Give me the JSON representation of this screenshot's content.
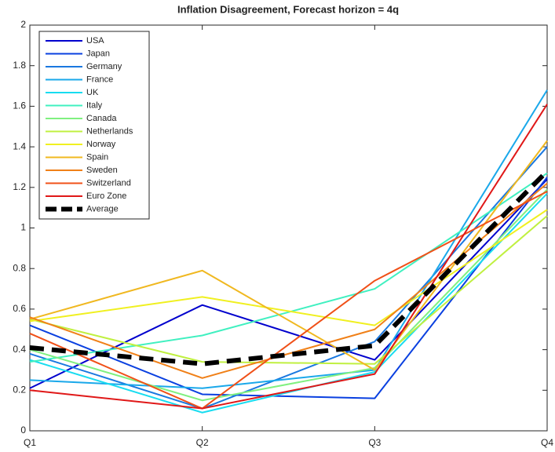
{
  "chart_data": {
    "type": "line",
    "title": "Inflation Disagreement, Forecast horizon = 4q",
    "categories": [
      "Q1",
      "Q2",
      "Q3",
      "Q4"
    ],
    "ylim": [
      0,
      2
    ],
    "yticks": [
      0,
      0.2,
      0.4,
      0.6,
      0.8,
      1,
      1.2,
      1.4,
      1.6,
      1.8,
      2
    ],
    "legend": "upper-left",
    "series": [
      {
        "name": "USA",
        "color": "#0000cd",
        "values": [
          0.21,
          0.62,
          0.35,
          1.24
        ]
      },
      {
        "name": "Japan",
        "color": "#0a40e0",
        "values": [
          0.52,
          0.18,
          0.16,
          1.25
        ]
      },
      {
        "name": "Germany",
        "color": "#1a78e0",
        "values": [
          0.38,
          0.11,
          0.44,
          1.4
        ]
      },
      {
        "name": "France",
        "color": "#1aa8ea",
        "values": [
          0.25,
          0.21,
          0.3,
          1.68
        ]
      },
      {
        "name": "UK",
        "color": "#18dcf0",
        "values": [
          0.35,
          0.09,
          0.29,
          1.17
        ]
      },
      {
        "name": "Italy",
        "color": "#40f0c0",
        "values": [
          0.34,
          0.47,
          0.7,
          1.27
        ]
      },
      {
        "name": "Canada",
        "color": "#80f080",
        "values": [
          0.4,
          0.15,
          0.31,
          1.19
        ]
      },
      {
        "name": "Netherlands",
        "color": "#c0f040",
        "values": [
          0.55,
          0.34,
          0.33,
          1.06
        ]
      },
      {
        "name": "Norway",
        "color": "#f0f020",
        "values": [
          0.54,
          0.66,
          0.52,
          1.09
        ]
      },
      {
        "name": "Spain",
        "color": "#f0b820",
        "values": [
          0.55,
          0.79,
          0.3,
          1.43
        ]
      },
      {
        "name": "Sweden",
        "color": "#f08018",
        "values": [
          0.56,
          0.26,
          0.5,
          1.22
        ]
      },
      {
        "name": "Switzerland",
        "color": "#f05018",
        "values": [
          0.48,
          0.11,
          0.74,
          1.18
        ]
      },
      {
        "name": "Euro Zone",
        "color": "#e01818",
        "values": [
          0.2,
          0.11,
          0.28,
          1.61
        ]
      },
      {
        "name": "Average",
        "color": "#000000",
        "dashed": true,
        "values": [
          0.41,
          0.33,
          0.42,
          1.28
        ]
      }
    ]
  }
}
